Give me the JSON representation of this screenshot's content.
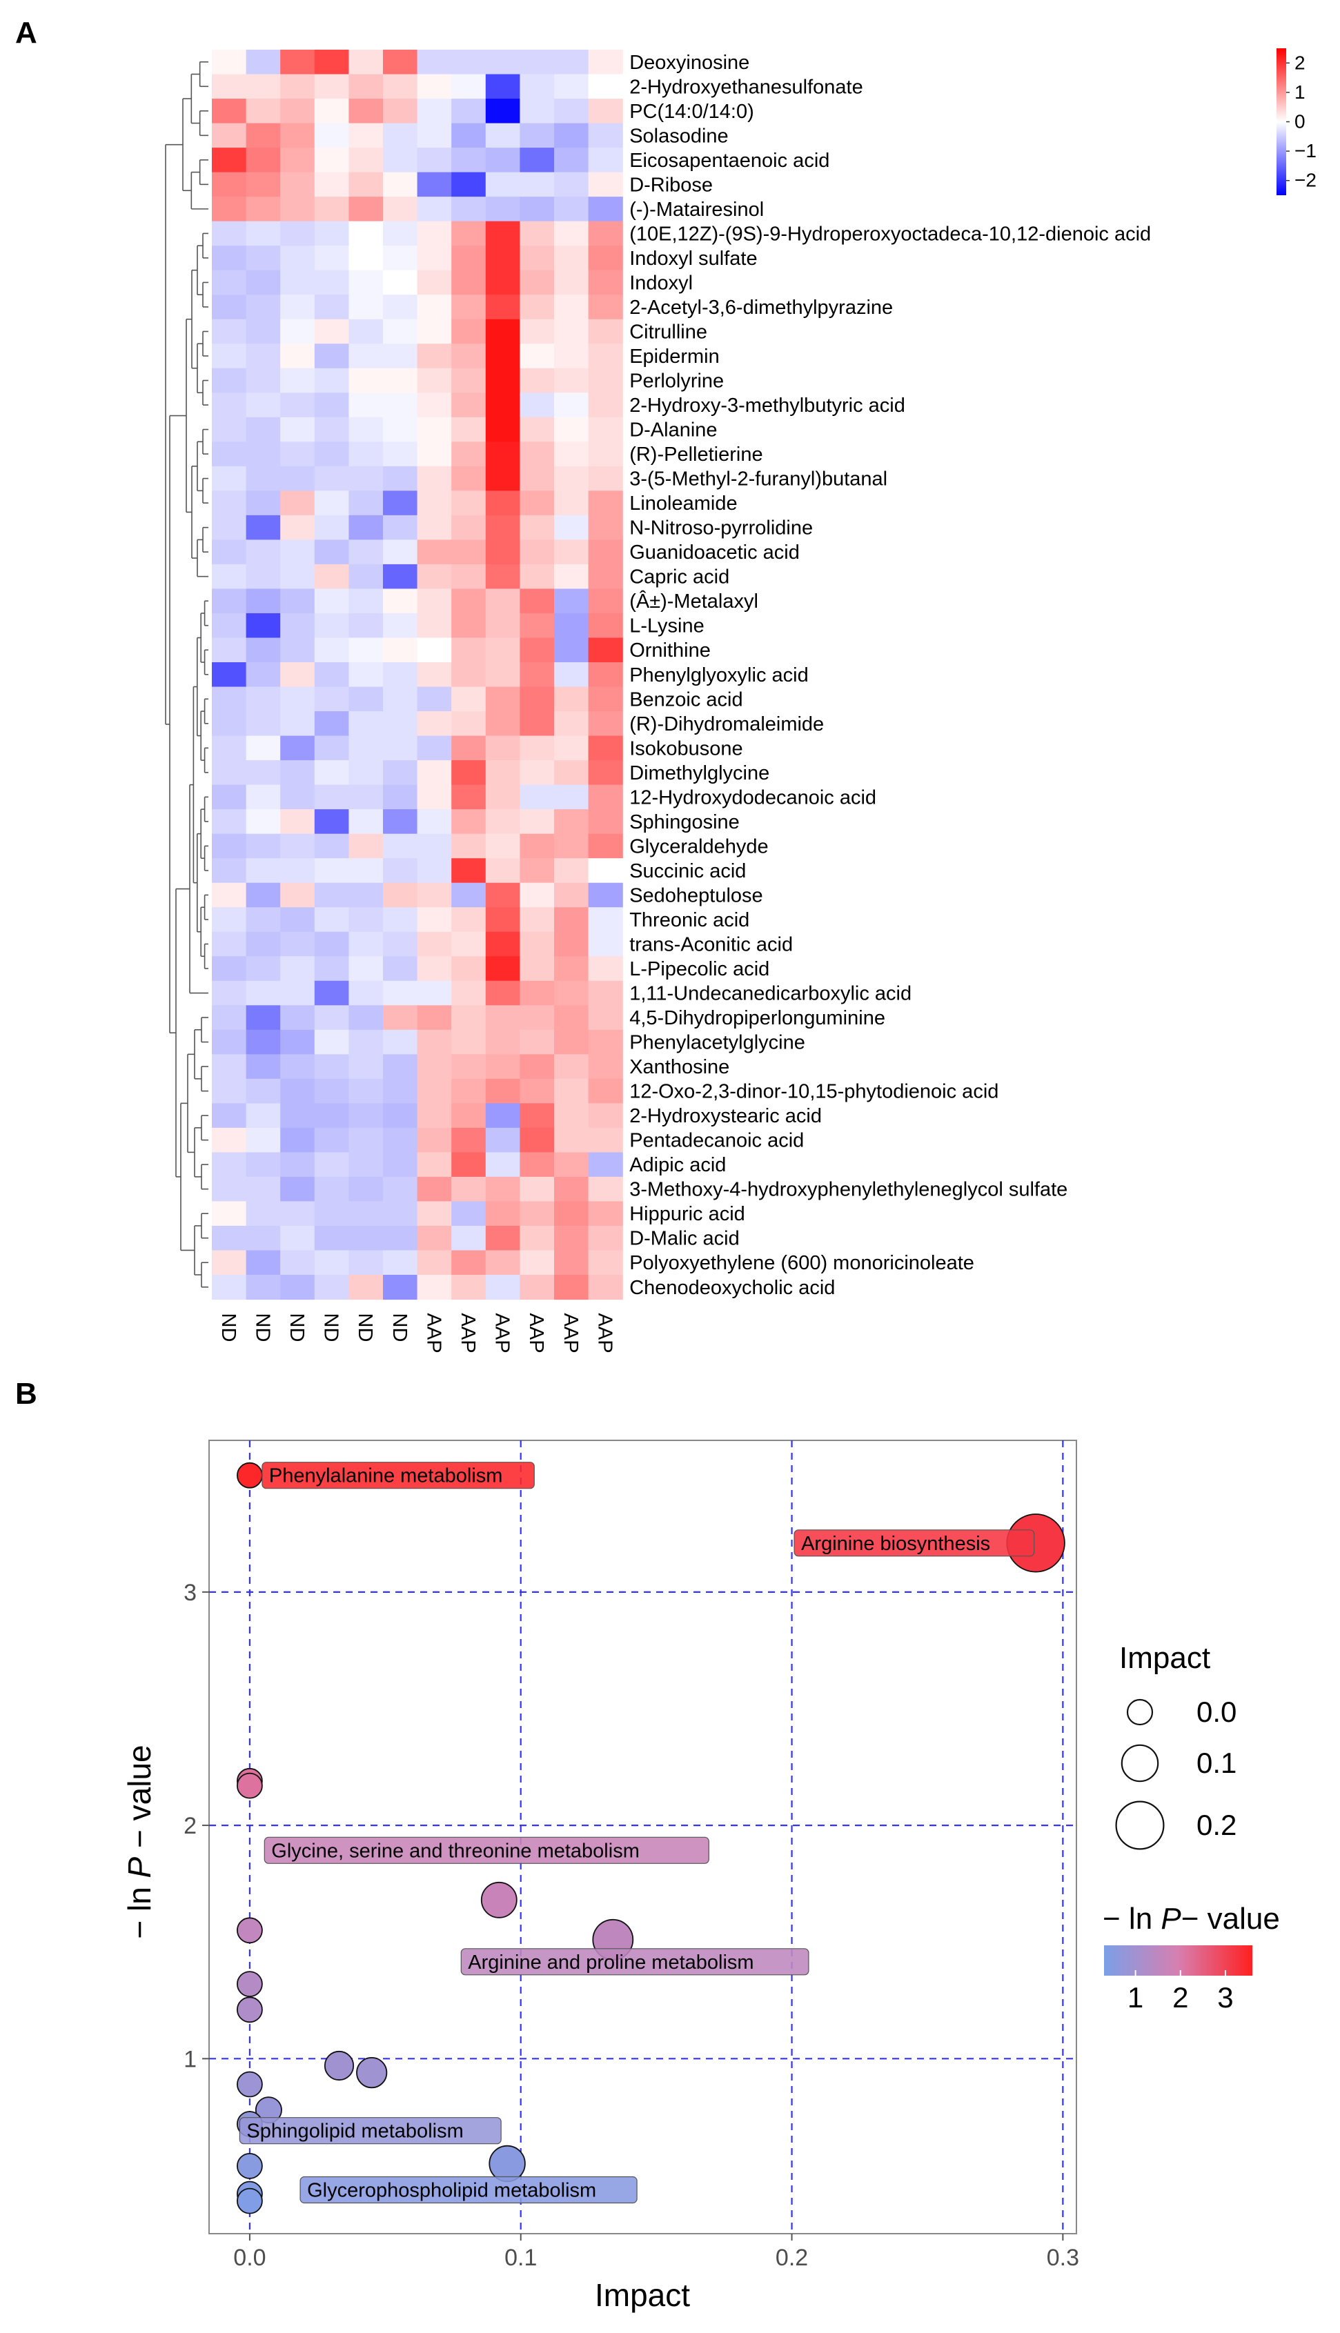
{
  "panels": {
    "a_label": "A",
    "b_label": "B"
  },
  "chart_data": [
    {
      "type": "heatmap",
      "columns": [
        "ND",
        "ND",
        "ND",
        "ND",
        "ND",
        "ND",
        "AAP",
        "AAP",
        "AAP",
        "AAP",
        "AAP",
        "AAP"
      ],
      "rows": [
        "Deoxyinosine",
        "2-Hydroxyethanesulfonate",
        "PC(14:0/14:0)",
        "Solasodine",
        "Eicosapentaenoic acid",
        "D-Ribose",
        "(-)-Matairesinol",
        "(10E,12Z)-(9S)-9-Hydroperoxyoctadeca-10,12-dienoic acid",
        "Indoxyl sulfate",
        "Indoxyl",
        "2-Acetyl-3,6-dimethylpyrazine",
        "Citrulline",
        "Epidermin",
        "Perlolyrine",
        "2-Hydroxy-3-methylbutyric acid",
        "D-Alanine",
        "(R)-Pelletierine",
        "3-(5-Methyl-2-furanyl)butanal",
        "Linoleamide",
        "N-Nitroso-pyrrolidine",
        "Guanidoacetic acid",
        "Capric acid",
        "(Â±)-Metalaxyl",
        "L-Lysine",
        "Ornithine",
        "Phenylglyoxylic acid",
        "Benzoic acid",
        "(R)-Dihydromaleimide",
        "Isokobusone",
        "Dimethylglycine",
        "12-Hydroxydodecanoic acid",
        "Sphingosine",
        "Glyceraldehyde",
        "Succinic acid",
        "Sedoheptulose",
        "Threonic acid",
        "trans-Aconitic acid",
        "L-Pipecolic acid",
        "1,11-Undecanedicarboxylic acid",
        "4,5-Dihydropiperlonguminine",
        "Phenylacetylglycine",
        "Xanthosine",
        "12-Oxo-2,3-dinor-10,15-phytodienoic acid",
        "2-Hydroxystearic acid",
        "Pentadecanoic acid",
        "Adipic acid",
        "3-Methoxy-4-hydroxyphenylethyleneglycol sulfate",
        "Hippuric acid",
        "D-Malic acid",
        "Polyoxyethylene (600) monoricinoleate",
        "Chenodeoxycholic acid"
      ],
      "values": [
        [
          0.1,
          -0.5,
          1.5,
          1.8,
          0.3,
          1.4,
          -0.4,
          -0.4,
          -0.4,
          -0.4,
          -0.4,
          0.2
        ],
        [
          0.3,
          0.3,
          0.5,
          0.3,
          0.6,
          0.4,
          0.1,
          -0.1,
          -1.8,
          -0.3,
          -0.2,
          0.0
        ],
        [
          1.3,
          0.5,
          0.7,
          0.1,
          1.0,
          0.6,
          -0.2,
          -0.5,
          -2.4,
          -0.3,
          -0.4,
          0.4
        ],
        [
          0.6,
          1.2,
          0.9,
          -0.1,
          0.2,
          -0.3,
          -0.2,
          -0.8,
          -0.3,
          -0.6,
          -0.8,
          -0.4
        ],
        [
          1.9,
          1.3,
          0.8,
          0.1,
          0.3,
          -0.3,
          -0.4,
          -0.6,
          -0.7,
          -1.4,
          -0.7,
          -0.3
        ],
        [
          1.2,
          1.1,
          0.7,
          0.2,
          0.5,
          0.1,
          -1.3,
          -1.8,
          -0.3,
          -0.3,
          -0.4,
          0.2
        ],
        [
          1.1,
          0.9,
          0.7,
          0.5,
          1.0,
          0.3,
          -0.3,
          -0.5,
          -0.6,
          -0.7,
          -0.5,
          -0.9
        ],
        [
          -0.4,
          -0.3,
          -0.4,
          -0.3,
          0.0,
          -0.2,
          0.2,
          0.9,
          2.0,
          0.5,
          0.2,
          1.0
        ],
        [
          -0.6,
          -0.5,
          -0.3,
          -0.2,
          0.0,
          -0.1,
          0.2,
          1.0,
          2.0,
          0.6,
          0.3,
          1.1
        ],
        [
          -0.5,
          -0.6,
          -0.3,
          -0.3,
          -0.1,
          0.0,
          0.3,
          1.0,
          2.0,
          0.7,
          0.3,
          1.0
        ],
        [
          -0.6,
          -0.5,
          -0.2,
          -0.4,
          -0.1,
          -0.2,
          0.1,
          0.8,
          1.8,
          0.5,
          0.2,
          0.9
        ],
        [
          -0.4,
          -0.5,
          -0.1,
          0.2,
          -0.3,
          -0.1,
          0.1,
          0.9,
          2.3,
          0.3,
          0.2,
          0.5
        ],
        [
          -0.3,
          -0.4,
          0.1,
          -0.6,
          -0.2,
          -0.2,
          0.5,
          0.7,
          2.3,
          0.1,
          0.2,
          0.4
        ],
        [
          -0.5,
          -0.4,
          -0.2,
          -0.3,
          0.1,
          0.1,
          0.3,
          0.6,
          2.3,
          0.4,
          0.3,
          0.4
        ],
        [
          -0.4,
          -0.3,
          -0.4,
          -0.5,
          -0.1,
          -0.1,
          0.2,
          0.7,
          2.3,
          -0.3,
          -0.1,
          0.4
        ],
        [
          -0.4,
          -0.5,
          -0.2,
          -0.4,
          -0.2,
          -0.1,
          0.1,
          0.4,
          2.3,
          0.4,
          0.1,
          0.3
        ],
        [
          -0.5,
          -0.5,
          -0.4,
          -0.5,
          -0.3,
          -0.2,
          0.1,
          0.7,
          2.2,
          0.6,
          0.2,
          0.3
        ],
        [
          -0.3,
          -0.5,
          -0.5,
          -0.4,
          -0.4,
          -0.5,
          0.3,
          0.8,
          2.2,
          0.6,
          0.3,
          0.4
        ],
        [
          -0.4,
          -0.6,
          0.6,
          -0.2,
          -0.5,
          -1.3,
          0.3,
          0.5,
          1.6,
          0.8,
          0.3,
          0.9
        ],
        [
          -0.4,
          -1.4,
          0.3,
          -0.3,
          -0.9,
          -0.5,
          0.3,
          0.6,
          1.5,
          0.5,
          -0.2,
          0.9
        ],
        [
          -0.5,
          -0.4,
          -0.3,
          -0.6,
          -0.4,
          -0.2,
          0.8,
          0.8,
          1.5,
          0.6,
          0.4,
          1.0
        ],
        [
          -0.3,
          -0.4,
          -0.3,
          0.4,
          -0.5,
          -1.5,
          0.5,
          0.6,
          1.4,
          0.5,
          0.2,
          1.0
        ],
        [
          -0.6,
          -0.8,
          -0.6,
          -0.2,
          -0.3,
          0.1,
          0.3,
          0.9,
          0.6,
          1.3,
          -0.8,
          1.1
        ],
        [
          -0.5,
          -1.8,
          -0.5,
          -0.3,
          -0.4,
          -0.2,
          0.3,
          0.9,
          0.6,
          1.1,
          -0.9,
          1.2
        ],
        [
          -0.4,
          -0.7,
          -0.5,
          -0.2,
          -0.1,
          0.1,
          0.0,
          0.6,
          0.5,
          1.3,
          -0.9,
          1.9
        ],
        [
          -1.7,
          -0.6,
          0.3,
          -0.5,
          -0.2,
          -0.3,
          0.3,
          0.6,
          0.5,
          1.2,
          -0.3,
          1.2
        ],
        [
          -0.5,
          -0.4,
          -0.3,
          -0.4,
          -0.5,
          -0.3,
          -0.5,
          0.3,
          0.9,
          1.3,
          0.5,
          1.1
        ],
        [
          -0.5,
          -0.4,
          -0.3,
          -0.8,
          -0.3,
          -0.3,
          0.3,
          0.4,
          0.9,
          1.3,
          0.4,
          1.0
        ],
        [
          -0.4,
          -0.1,
          -1.0,
          -0.5,
          -0.3,
          -0.3,
          -0.5,
          1.0,
          0.6,
          0.4,
          0.3,
          1.5
        ],
        [
          -0.4,
          -0.4,
          -0.5,
          -0.2,
          -0.3,
          -0.5,
          0.2,
          1.6,
          0.5,
          0.3,
          0.5,
          1.4
        ],
        [
          -0.6,
          -0.2,
          -0.5,
          -0.4,
          -0.4,
          -0.6,
          0.2,
          1.4,
          0.5,
          -0.3,
          -0.3,
          1.0
        ],
        [
          -0.4,
          -0.1,
          0.3,
          -1.5,
          -0.2,
          -1.1,
          -0.2,
          0.8,
          0.4,
          0.3,
          0.8,
          1.0
        ],
        [
          -0.6,
          -0.5,
          -0.4,
          -0.5,
          0.4,
          -0.3,
          -0.3,
          0.5,
          0.3,
          0.9,
          0.8,
          1.2
        ],
        [
          -0.5,
          -0.3,
          -0.3,
          -0.2,
          -0.2,
          -0.4,
          -0.3,
          1.9,
          0.4,
          0.8,
          0.4,
          0.0
        ],
        [
          0.2,
          -0.8,
          0.4,
          -0.5,
          -0.5,
          0.5,
          0.4,
          -0.7,
          1.5,
          0.2,
          0.6,
          -0.9
        ],
        [
          -0.3,
          -0.5,
          -0.6,
          -0.3,
          -0.4,
          -0.3,
          0.2,
          0.4,
          1.6,
          0.4,
          1.0,
          -0.2
        ],
        [
          -0.4,
          -0.6,
          -0.5,
          -0.6,
          -0.3,
          -0.4,
          0.4,
          0.3,
          1.9,
          0.5,
          1.0,
          -0.2
        ],
        [
          -0.6,
          -0.5,
          -0.3,
          -0.5,
          -0.2,
          -0.5,
          0.3,
          0.5,
          2.1,
          0.5,
          0.9,
          0.3
        ],
        [
          -0.4,
          -0.3,
          -0.3,
          -1.3,
          -0.3,
          -0.2,
          -0.2,
          0.4,
          1.4,
          0.9,
          0.8,
          0.6
        ],
        [
          -0.5,
          -1.3,
          -0.6,
          -0.4,
          -0.6,
          0.7,
          0.9,
          0.5,
          0.7,
          0.7,
          0.9,
          0.6
        ],
        [
          -0.6,
          -1.1,
          -0.8,
          -0.2,
          -0.4,
          -0.3,
          0.6,
          0.5,
          0.7,
          0.6,
          0.9,
          0.8
        ],
        [
          -0.4,
          -0.8,
          -0.6,
          -0.5,
          -0.4,
          -0.6,
          0.6,
          0.7,
          0.8,
          1.0,
          0.6,
          0.8
        ],
        [
          -0.4,
          -0.5,
          -0.7,
          -0.6,
          -0.5,
          -0.6,
          0.6,
          0.8,
          1.1,
          0.9,
          0.5,
          0.9
        ],
        [
          -0.6,
          -0.3,
          -0.7,
          -0.7,
          -0.6,
          -0.7,
          0.6,
          0.9,
          -1.0,
          1.4,
          0.5,
          0.6
        ],
        [
          0.2,
          -0.2,
          -0.8,
          -0.6,
          -0.5,
          -0.6,
          0.7,
          1.3,
          -0.6,
          1.5,
          0.5,
          0.5
        ],
        [
          -0.4,
          -0.5,
          -0.6,
          -0.4,
          -0.5,
          -0.6,
          0.5,
          1.5,
          -0.3,
          1.1,
          0.8,
          -0.7
        ],
        [
          -0.4,
          -0.4,
          -0.8,
          -0.5,
          -0.6,
          -0.5,
          1.0,
          0.6,
          0.8,
          0.4,
          1.0,
          0.4
        ],
        [
          0.1,
          -0.4,
          -0.4,
          -0.5,
          -0.5,
          -0.5,
          0.4,
          -0.6,
          0.9,
          0.7,
          1.1,
          0.8
        ],
        [
          -0.5,
          -0.5,
          -0.3,
          -0.6,
          -0.6,
          -0.6,
          0.7,
          -0.3,
          1.3,
          0.5,
          1.0,
          0.6
        ],
        [
          0.3,
          -0.8,
          -0.4,
          -0.3,
          -0.4,
          -0.3,
          0.5,
          1.0,
          0.7,
          0.3,
          1.0,
          0.5
        ],
        [
          -0.3,
          -0.6,
          -0.7,
          -0.4,
          0.5,
          -1.1,
          0.2,
          0.5,
          -0.3,
          0.6,
          1.2,
          0.6
        ]
      ],
      "color_scale": {
        "low": "#0000ff",
        "mid": "#ffffff",
        "high": "#ff0000",
        "min": -2.5,
        "max": 2.5,
        "ticks": [
          2,
          1,
          0,
          -1,
          -2
        ],
        "tick_labels": [
          "2",
          "1",
          "0",
          "−1",
          "−2"
        ]
      }
    },
    {
      "type": "scatter",
      "xlabel": "Impact",
      "ylabel_parts": [
        "− ln ",
        "P",
        " − value"
      ],
      "xlim": [
        -0.015,
        0.305
      ],
      "ylim": [
        0.25,
        3.65
      ],
      "xticks": [
        0.0,
        0.1,
        0.2,
        0.3
      ],
      "xtick_labels": [
        "0.0",
        "0.1",
        "0.2",
        "0.3"
      ],
      "yticks": [
        1,
        2,
        3
      ],
      "ytick_labels": [
        "1",
        "2",
        "3"
      ],
      "grid": true,
      "grid_color": "#3333ff",
      "points": [
        {
          "x": 0.0,
          "y": 3.5,
          "impact": 0.0,
          "label": "Phenylalanine metabolism"
        },
        {
          "x": 0.29,
          "y": 3.21,
          "impact": 0.29,
          "label": "Arginine biosynthesis"
        },
        {
          "x": 0.0,
          "y": 2.19,
          "impact": 0.0,
          "label": ""
        },
        {
          "x": 0.0,
          "y": 2.17,
          "impact": 0.0,
          "label": ""
        },
        {
          "x": 0.092,
          "y": 1.68,
          "impact": 0.092,
          "label": "Glycine, serine and threonine metabolism"
        },
        {
          "x": 0.134,
          "y": 1.51,
          "impact": 0.134,
          "label": "Arginine and proline metabolism"
        },
        {
          "x": 0.0,
          "y": 1.55,
          "impact": 0.0,
          "label": ""
        },
        {
          "x": 0.0,
          "y": 1.32,
          "impact": 0.0,
          "label": ""
        },
        {
          "x": 0.0,
          "y": 1.21,
          "impact": 0.0,
          "label": ""
        },
        {
          "x": 0.033,
          "y": 0.97,
          "impact": 0.033,
          "label": ""
        },
        {
          "x": 0.045,
          "y": 0.94,
          "impact": 0.045,
          "label": ""
        },
        {
          "x": 0.0,
          "y": 0.89,
          "impact": 0.0,
          "label": ""
        },
        {
          "x": 0.007,
          "y": 0.78,
          "impact": 0.007,
          "label": "Sphingolipid metabolism"
        },
        {
          "x": 0.0,
          "y": 0.72,
          "impact": 0.0,
          "label": ""
        },
        {
          "x": 0.095,
          "y": 0.55,
          "impact": 0.095,
          "label": "Glycerophospholipid metabolism"
        },
        {
          "x": 0.0,
          "y": 0.54,
          "impact": 0.0,
          "label": ""
        },
        {
          "x": 0.0,
          "y": 0.42,
          "impact": 0.0,
          "label": ""
        },
        {
          "x": 0.0,
          "y": 0.39,
          "impact": 0.0,
          "label": ""
        }
      ],
      "size_legend": {
        "title": "Impact",
        "values": [
          0.0,
          0.1,
          0.2
        ],
        "labels": [
          "0.0",
          "0.1",
          "0.2"
        ]
      },
      "color_legend": {
        "title_parts": [
          "− ln ",
          "P",
          "− value"
        ],
        "ticks": [
          1,
          2,
          3
        ],
        "tick_labels": [
          "1",
          "2",
          "3"
        ],
        "low_color": "#7b9fe8",
        "mid_color": "#d77fb0",
        "high_color": "#ff2020"
      }
    }
  ]
}
